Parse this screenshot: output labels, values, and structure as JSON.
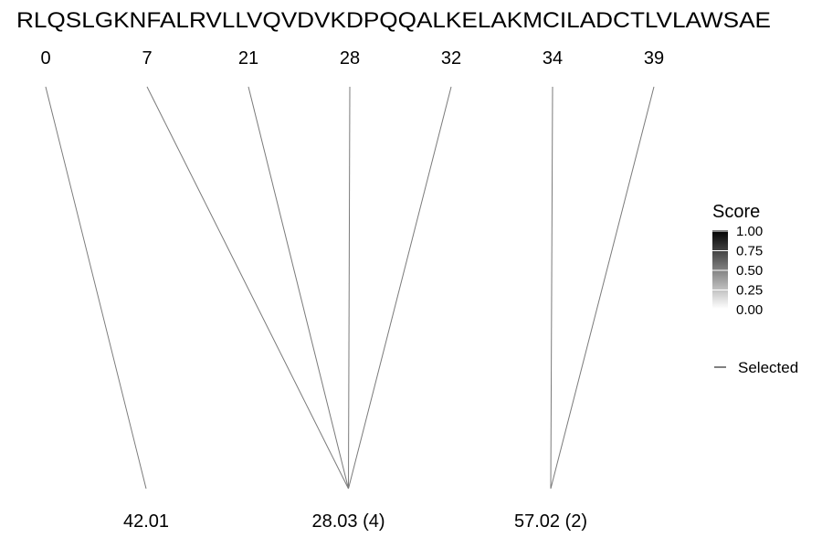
{
  "sequence": "RLQSLGKNFALRVLLVQVDVKDPQQALKELAKMCILADCTLVLAWSAE",
  "positions": [
    0,
    7,
    21,
    28,
    32,
    34,
    39
  ],
  "groups": [
    {
      "label": "42.01",
      "positions": [
        0
      ]
    },
    {
      "label": "28.03 (4)",
      "positions": [
        7,
        21,
        28,
        32
      ]
    },
    {
      "label": "57.02 (2)",
      "positions": [
        34,
        39
      ]
    }
  ],
  "legend": {
    "title": "Score",
    "ticks": [
      "1.00",
      "0.75",
      "0.50",
      "0.25",
      "0.00"
    ],
    "selected_label": "Selected",
    "gradient": [
      "#000000",
      "#ffffff"
    ]
  },
  "colors": {
    "line": "#7a7a7a",
    "text": "#000000"
  }
}
